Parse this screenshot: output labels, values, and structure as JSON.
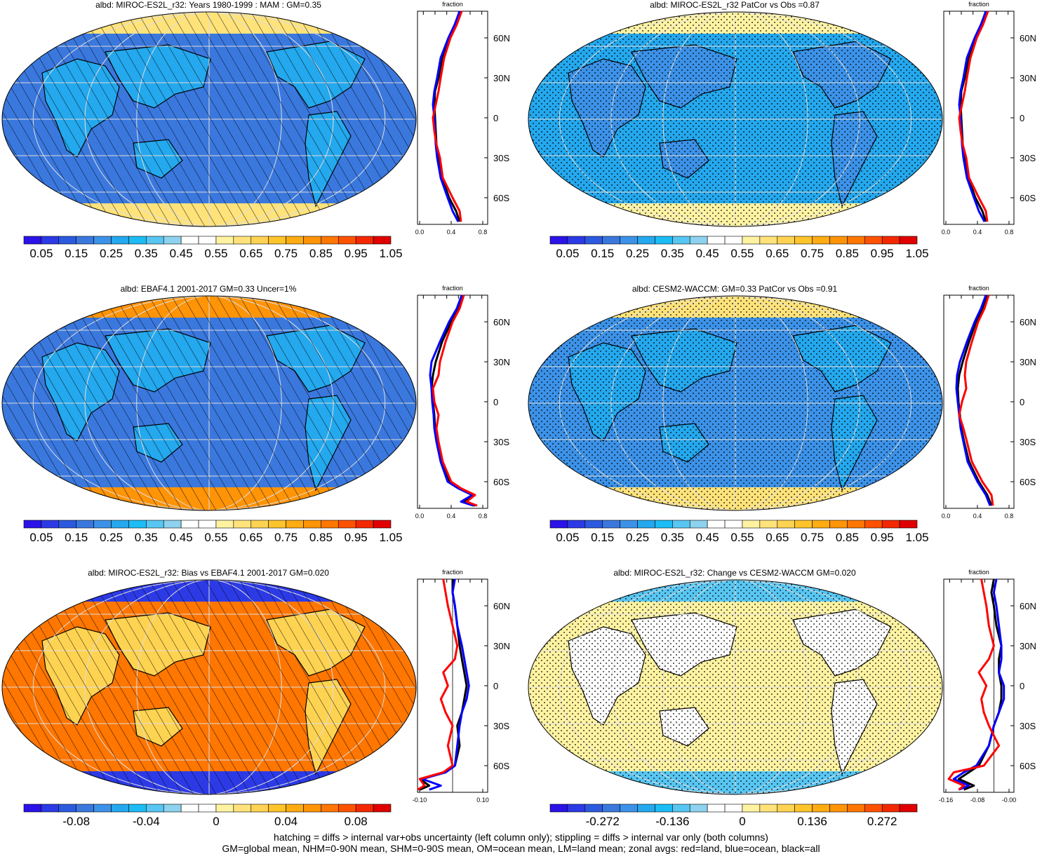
{
  "footer": {
    "line1": "hatching = diffs > internal var+obs uncertainty (left column only); stippling = diffs > internal var only (both columns)",
    "line2": "GM=global mean, NHM=0-90N mean, SHM=0-90S mean, OM=ocean mean, LM=land mean; zonal avgs: red=land, blue=ocean, black=all"
  },
  "colors": {
    "land": "#ff0000",
    "ocean": "#0000ff",
    "all": "#000000"
  },
  "abs_colorbar": {
    "colors": [
      "#2a12e8",
      "#2c3ae6",
      "#2c5ade",
      "#3a78de",
      "#3c92e8",
      "#24a8ee",
      "#1cbcf4",
      "#58c6f2",
      "#8dd2ee",
      "#ffffff",
      "#ffffff",
      "#fff3a2",
      "#ffe37a",
      "#ffd352",
      "#ffc42a",
      "#ffac12",
      "#ff9406",
      "#ff7600",
      "#ff5200",
      "#f42800",
      "#e00000"
    ],
    "labels": [
      "0.05",
      "0.15",
      "0.25",
      "0.35",
      "0.45",
      "0.55",
      "0.65",
      "0.75",
      "0.85",
      "0.95",
      "1.05"
    ]
  },
  "bias_colorbar": {
    "colors": [
      "#2a12e8",
      "#2c3ae6",
      "#2c5ade",
      "#3a78de",
      "#3c92e8",
      "#24a8ee",
      "#1cbcf4",
      "#58c6f2",
      "#8dd2ee",
      "#ffffff",
      "#ffffff",
      "#fff3a2",
      "#ffe37a",
      "#ffd352",
      "#ffc42a",
      "#ffac12",
      "#ff9406",
      "#ff7600",
      "#ff5200",
      "#f42800",
      "#e00000"
    ],
    "labels": [
      "-0.08",
      "-0.04",
      "0",
      "0.04",
      "0.08"
    ]
  },
  "change_colorbar": {
    "colors": [
      "#2a12e8",
      "#2c3ae6",
      "#2c5ade",
      "#3a78de",
      "#3c92e8",
      "#24a8ee",
      "#1cbcf4",
      "#58c6f2",
      "#8dd2ee",
      "#ffffff",
      "#ffffff",
      "#fff3a2",
      "#ffe37a",
      "#ffd352",
      "#ffc42a",
      "#ffac12",
      "#ff9406",
      "#ff7600",
      "#ff5200",
      "#f42800",
      "#e00000"
    ],
    "labels": [
      "-0.272",
      "-0.136",
      "0",
      "0.136",
      "0.272"
    ]
  },
  "chart_data": [
    {
      "type": "heatmap",
      "title": "albd: MIROC-ES2L_r32: Years 1980-1999 : MAM : GM=0.35",
      "ocean_color": "#3a78de",
      "land_color": "#24a8ee",
      "polar_color": "#ffe37a",
      "hatching": true,
      "stippling": false,
      "zonal": {
        "xlabel": "fraction",
        "xlim": [
          0,
          1
        ],
        "xticks": [
          "0.0",
          "0.4",
          "0.8"
        ],
        "lat_ticks": [
          "60N",
          "30N",
          "0",
          "30S",
          "60S"
        ],
        "zero_line": false,
        "series": [
          {
            "color_key": "all",
            "lat": [
              80,
              70,
              60,
              45,
              30,
              20,
              10,
              0,
              -10,
              -20,
              -30,
              -45,
              -60,
              -70,
              -78
            ],
            "values": [
              0.62,
              0.55,
              0.45,
              0.35,
              0.3,
              0.25,
              0.24,
              0.25,
              0.26,
              0.27,
              0.3,
              0.35,
              0.45,
              0.55,
              0.6
            ]
          },
          {
            "color_key": "ocean",
            "lat": [
              80,
              70,
              60,
              45,
              30,
              20,
              10,
              0,
              -10,
              -20,
              -30,
              -45,
              -60,
              -70,
              -78
            ],
            "values": [
              0.6,
              0.53,
              0.44,
              0.33,
              0.28,
              0.24,
              0.22,
              0.24,
              0.25,
              0.26,
              0.28,
              0.33,
              0.43,
              0.5,
              0.58
            ]
          },
          {
            "color_key": "land",
            "lat": [
              80,
              70,
              60,
              45,
              30,
              20,
              10,
              0,
              -10,
              -20,
              -30,
              -45,
              -60,
              -70,
              -78
            ],
            "values": [
              0.63,
              0.56,
              0.47,
              0.38,
              0.33,
              0.3,
              0.26,
              0.22,
              0.24,
              0.27,
              0.32,
              0.36,
              0.5,
              0.6,
              0.62
            ]
          }
        ]
      }
    },
    {
      "type": "heatmap",
      "title": "albd: MIROC-ES2L_r32 PatCor vs Obs =0.87",
      "ocean_color": "#24a8ee",
      "land_color": "#3c92e8",
      "polar_color": "#fff3a2",
      "hatching": false,
      "stippling": true,
      "zonal": {
        "xlabel": "fraction",
        "xlim": [
          0,
          1
        ],
        "xticks": [
          "0.0",
          "0.4",
          "0.8"
        ],
        "lat_ticks": [
          "60N",
          "30N",
          "0",
          "30S",
          "60S"
        ],
        "zero_line": false,
        "series": [
          {
            "color_key": "all",
            "lat": [
              80,
              70,
              60,
              45,
              30,
              20,
              10,
              0,
              -10,
              -20,
              -30,
              -45,
              -60,
              -70,
              -78
            ],
            "values": [
              0.62,
              0.55,
              0.45,
              0.35,
              0.3,
              0.25,
              0.24,
              0.25,
              0.26,
              0.27,
              0.3,
              0.35,
              0.45,
              0.55,
              0.6
            ]
          },
          {
            "color_key": "ocean",
            "lat": [
              80,
              70,
              60,
              45,
              30,
              20,
              10,
              0,
              -10,
              -20,
              -30,
              -45,
              -60,
              -70,
              -78
            ],
            "values": [
              0.6,
              0.53,
              0.44,
              0.33,
              0.28,
              0.24,
              0.22,
              0.24,
              0.25,
              0.26,
              0.28,
              0.33,
              0.43,
              0.5,
              0.58
            ]
          },
          {
            "color_key": "land",
            "lat": [
              80,
              70,
              60,
              45,
              30,
              20,
              10,
              0,
              -10,
              -20,
              -30,
              -45,
              -60,
              -70,
              -78
            ],
            "values": [
              0.63,
              0.56,
              0.47,
              0.38,
              0.33,
              0.3,
              0.26,
              0.22,
              0.24,
              0.27,
              0.32,
              0.36,
              0.5,
              0.6,
              0.62
            ]
          }
        ]
      }
    },
    {
      "type": "heatmap",
      "title": "albd: EBAF4.1 2001-2017 GM=0.33 Uncer=1%",
      "ocean_color": "#3a78de",
      "land_color": "#24a8ee",
      "polar_color": "#ff9406",
      "hatching": true,
      "stippling": false,
      "zonal": {
        "xlabel": "fraction",
        "xlim": [
          0,
          1
        ],
        "xticks": [
          "0.0",
          "0.4",
          "0.8"
        ],
        "lat_ticks": [
          "60N",
          "30N",
          "0",
          "30S",
          "60S"
        ],
        "zero_line": false,
        "series": [
          {
            "color_key": "all",
            "lat": [
              80,
              70,
              60,
              45,
              30,
              20,
              10,
              0,
              -10,
              -20,
              -30,
              -45,
              -60,
              -65,
              -70,
              -75,
              -78
            ],
            "values": [
              0.65,
              0.58,
              0.48,
              0.35,
              0.26,
              0.22,
              0.2,
              0.22,
              0.24,
              0.25,
              0.28,
              0.34,
              0.45,
              0.6,
              0.8,
              0.65,
              0.82
            ]
          },
          {
            "color_key": "ocean",
            "lat": [
              80,
              70,
              60,
              45,
              30,
              20,
              10,
              0,
              -10,
              -20,
              -30,
              -45,
              -60,
              -65,
              -70,
              -75,
              -78
            ],
            "values": [
              0.63,
              0.56,
              0.45,
              0.32,
              0.2,
              0.18,
              0.2,
              0.21,
              0.23,
              0.24,
              0.27,
              0.33,
              0.43,
              0.58,
              0.78,
              0.62,
              0.8
            ]
          },
          {
            "color_key": "land",
            "lat": [
              80,
              70,
              60,
              45,
              30,
              20,
              10,
              0,
              -10,
              -20,
              -30,
              -45,
              -60,
              -65,
              -70,
              -75,
              -78
            ],
            "values": [
              0.66,
              0.6,
              0.5,
              0.4,
              0.32,
              0.3,
              0.22,
              0.24,
              0.3,
              0.27,
              0.3,
              0.36,
              0.48,
              0.62,
              0.82,
              0.7,
              0.85
            ]
          }
        ]
      }
    },
    {
      "type": "heatmap",
      "title": "albd: CESM2-WACCM: GM=0.33 PatCor vs Obs =0.91",
      "ocean_color": "#3c92e8",
      "land_color": "#24a8ee",
      "polar_color": "#ffe37a",
      "hatching": false,
      "stippling": true,
      "zonal": {
        "xlabel": "fraction",
        "xlim": [
          0,
          1
        ],
        "xticks": [
          "0.0",
          "0.4",
          "0.8"
        ],
        "lat_ticks": [
          "60N",
          "30N",
          "0",
          "30S",
          "60S"
        ],
        "zero_line": false,
        "series": [
          {
            "color_key": "all",
            "lat": [
              80,
              70,
              60,
              45,
              30,
              20,
              10,
              0,
              -10,
              -20,
              -30,
              -45,
              -60,
              -70,
              -78
            ],
            "values": [
              0.62,
              0.55,
              0.46,
              0.36,
              0.27,
              0.22,
              0.2,
              0.21,
              0.23,
              0.25,
              0.29,
              0.36,
              0.5,
              0.62,
              0.68
            ]
          },
          {
            "color_key": "ocean",
            "lat": [
              80,
              70,
              60,
              45,
              30,
              20,
              10,
              0,
              -10,
              -20,
              -30,
              -45,
              -60,
              -70,
              -78
            ],
            "values": [
              0.6,
              0.53,
              0.44,
              0.33,
              0.23,
              0.19,
              0.18,
              0.2,
              0.22,
              0.24,
              0.28,
              0.34,
              0.48,
              0.6,
              0.66
            ]
          },
          {
            "color_key": "land",
            "lat": [
              80,
              70,
              60,
              45,
              30,
              20,
              10,
              0,
              -10,
              -20,
              -30,
              -45,
              -60,
              -70,
              -78
            ],
            "values": [
              0.64,
              0.58,
              0.49,
              0.4,
              0.32,
              0.3,
              0.32,
              0.26,
              0.22,
              0.28,
              0.33,
              0.4,
              0.55,
              0.68,
              0.7
            ]
          }
        ]
      }
    },
    {
      "type": "heatmap",
      "title": "albd: MIROC-ES2L_r32: Bias vs EBAF4.1 2001-2017 GM=0.020",
      "ocean_color": "#ff7600",
      "land_color": "#ffd352",
      "polar_color": "#2c3ae6",
      "hatching": true,
      "stippling": false,
      "zonal": {
        "xlabel": "fraction",
        "xlim": [
          -0.15,
          0.15
        ],
        "xticks": [
          "-0.10",
          "0.10"
        ],
        "lat_ticks": [
          "60N",
          "30N",
          "0",
          "30S",
          "60S"
        ],
        "zero_line": true,
        "series": [
          {
            "color_key": "all",
            "lat": [
              80,
              70,
              60,
              45,
              30,
              20,
              10,
              0,
              -10,
              -20,
              -30,
              -45,
              -60,
              -65,
              -70,
              -75,
              -78
            ],
            "values": [
              0.0,
              0.0,
              0.01,
              0.02,
              0.03,
              0.04,
              0.05,
              0.06,
              0.05,
              0.04,
              0.02,
              0.03,
              0.01,
              -0.03,
              -0.14,
              -0.1,
              -0.14
            ]
          },
          {
            "color_key": "ocean",
            "lat": [
              80,
              70,
              60,
              45,
              30,
              20,
              10,
              0,
              -10,
              -20,
              -30,
              -45,
              -60,
              -65,
              -70,
              -75,
              -78
            ],
            "values": [
              0.01,
              0.0,
              0.01,
              0.02,
              0.04,
              0.05,
              0.06,
              0.07,
              0.06,
              0.04,
              0.03,
              0.02,
              0.01,
              -0.03,
              -0.13,
              -0.05,
              -0.1
            ]
          },
          {
            "color_key": "land",
            "lat": [
              80,
              70,
              60,
              45,
              30,
              20,
              10,
              0,
              -10,
              -20,
              -30,
              -45,
              -60,
              -65,
              -70,
              -75,
              -78
            ],
            "values": [
              -0.04,
              -0.03,
              -0.02,
              0.0,
              0.02,
              0.01,
              -0.04,
              -0.02,
              -0.05,
              -0.03,
              0.0,
              -0.02,
              0.0,
              -0.04,
              -0.14,
              -0.12,
              -0.15
            ]
          }
        ]
      }
    },
    {
      "type": "heatmap",
      "title": "albd: MIROC-ES2L_r32: Change vs CESM2-WACCM GM=0.020",
      "ocean_color": "#fff3a2",
      "land_color": "#ffffff",
      "polar_color": "#58c6f2",
      "hatching": false,
      "stippling": true,
      "zonal": {
        "xlabel": "fraction",
        "xlim": [
          -0.2,
          0.08
        ],
        "xticks": [
          "-0.16",
          "-0.08",
          "-0.00"
        ],
        "lat_ticks": [
          "60N",
          "30N",
          "0",
          "30S",
          "60S"
        ],
        "zero_line": true,
        "series": [
          {
            "color_key": "all",
            "lat": [
              80,
              70,
              60,
              45,
              30,
              20,
              10,
              0,
              -10,
              -20,
              -30,
              -45,
              -60,
              -65,
              -70,
              -75,
              -78
            ],
            "values": [
              0.0,
              -0.01,
              0.0,
              0.01,
              0.03,
              0.02,
              0.02,
              0.03,
              0.03,
              0.02,
              0.0,
              -0.02,
              -0.06,
              -0.1,
              -0.14,
              -0.08,
              -0.12
            ]
          },
          {
            "color_key": "ocean",
            "lat": [
              80,
              70,
              60,
              45,
              30,
              20,
              10,
              0,
              -10,
              -20,
              -30,
              -45,
              -60,
              -65,
              -70,
              -75,
              -78
            ],
            "values": [
              0.01,
              0.0,
              0.01,
              0.02,
              0.03,
              0.03,
              0.02,
              0.04,
              0.04,
              0.02,
              0.0,
              -0.02,
              -0.07,
              -0.12,
              -0.16,
              -0.1,
              -0.14
            ]
          },
          {
            "color_key": "land",
            "lat": [
              80,
              70,
              60,
              45,
              30,
              20,
              10,
              0,
              -10,
              -20,
              -30,
              -45,
              -60,
              -65,
              -70,
              -75,
              -78
            ],
            "values": [
              -0.05,
              -0.04,
              -0.03,
              -0.02,
              0.0,
              -0.02,
              -0.06,
              -0.03,
              -0.05,
              -0.04,
              -0.02,
              0.02,
              -0.04,
              -0.16,
              -0.18,
              -0.12,
              -0.14
            ]
          }
        ]
      }
    }
  ]
}
